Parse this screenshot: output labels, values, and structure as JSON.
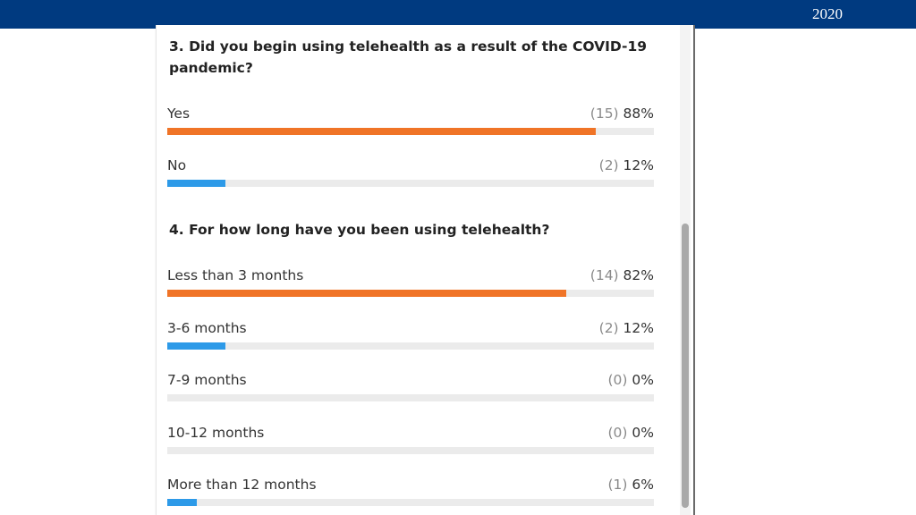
{
  "header": {
    "year": "2020",
    "bar_color": "#003a80"
  },
  "colors": {
    "orange": "#f07427",
    "blue": "#2d9ae8",
    "track": "#ebebeb"
  },
  "questions": [
    {
      "title": "3. Did you begin using telehealth as a result of the COVID-19 pandemic?",
      "options": [
        {
          "label": "Yes",
          "count": "(15)",
          "percent": "88%",
          "fraction": 0.88,
          "color": "orange"
        },
        {
          "label": "No",
          "count": "(2)",
          "percent": "12%",
          "fraction": 0.12,
          "color": "blue"
        }
      ]
    },
    {
      "title": "4. For how long have you been using telehealth?",
      "options": [
        {
          "label": "Less than 3 months",
          "count": "(14)",
          "percent": "82%",
          "fraction": 0.82,
          "color": "orange"
        },
        {
          "label": "3-6 months",
          "count": "(2)",
          "percent": "12%",
          "fraction": 0.12,
          "color": "blue"
        },
        {
          "label": "7-9 months",
          "count": "(0)",
          "percent": "0%",
          "fraction": 0,
          "color": "blue"
        },
        {
          "label": "10-12 months",
          "count": "(0)",
          "percent": "0%",
          "fraction": 0,
          "color": "blue"
        },
        {
          "label": "More than 12 months",
          "count": "(1)",
          "percent": "6%",
          "fraction": 0.06,
          "color": "blue"
        }
      ]
    }
  ]
}
